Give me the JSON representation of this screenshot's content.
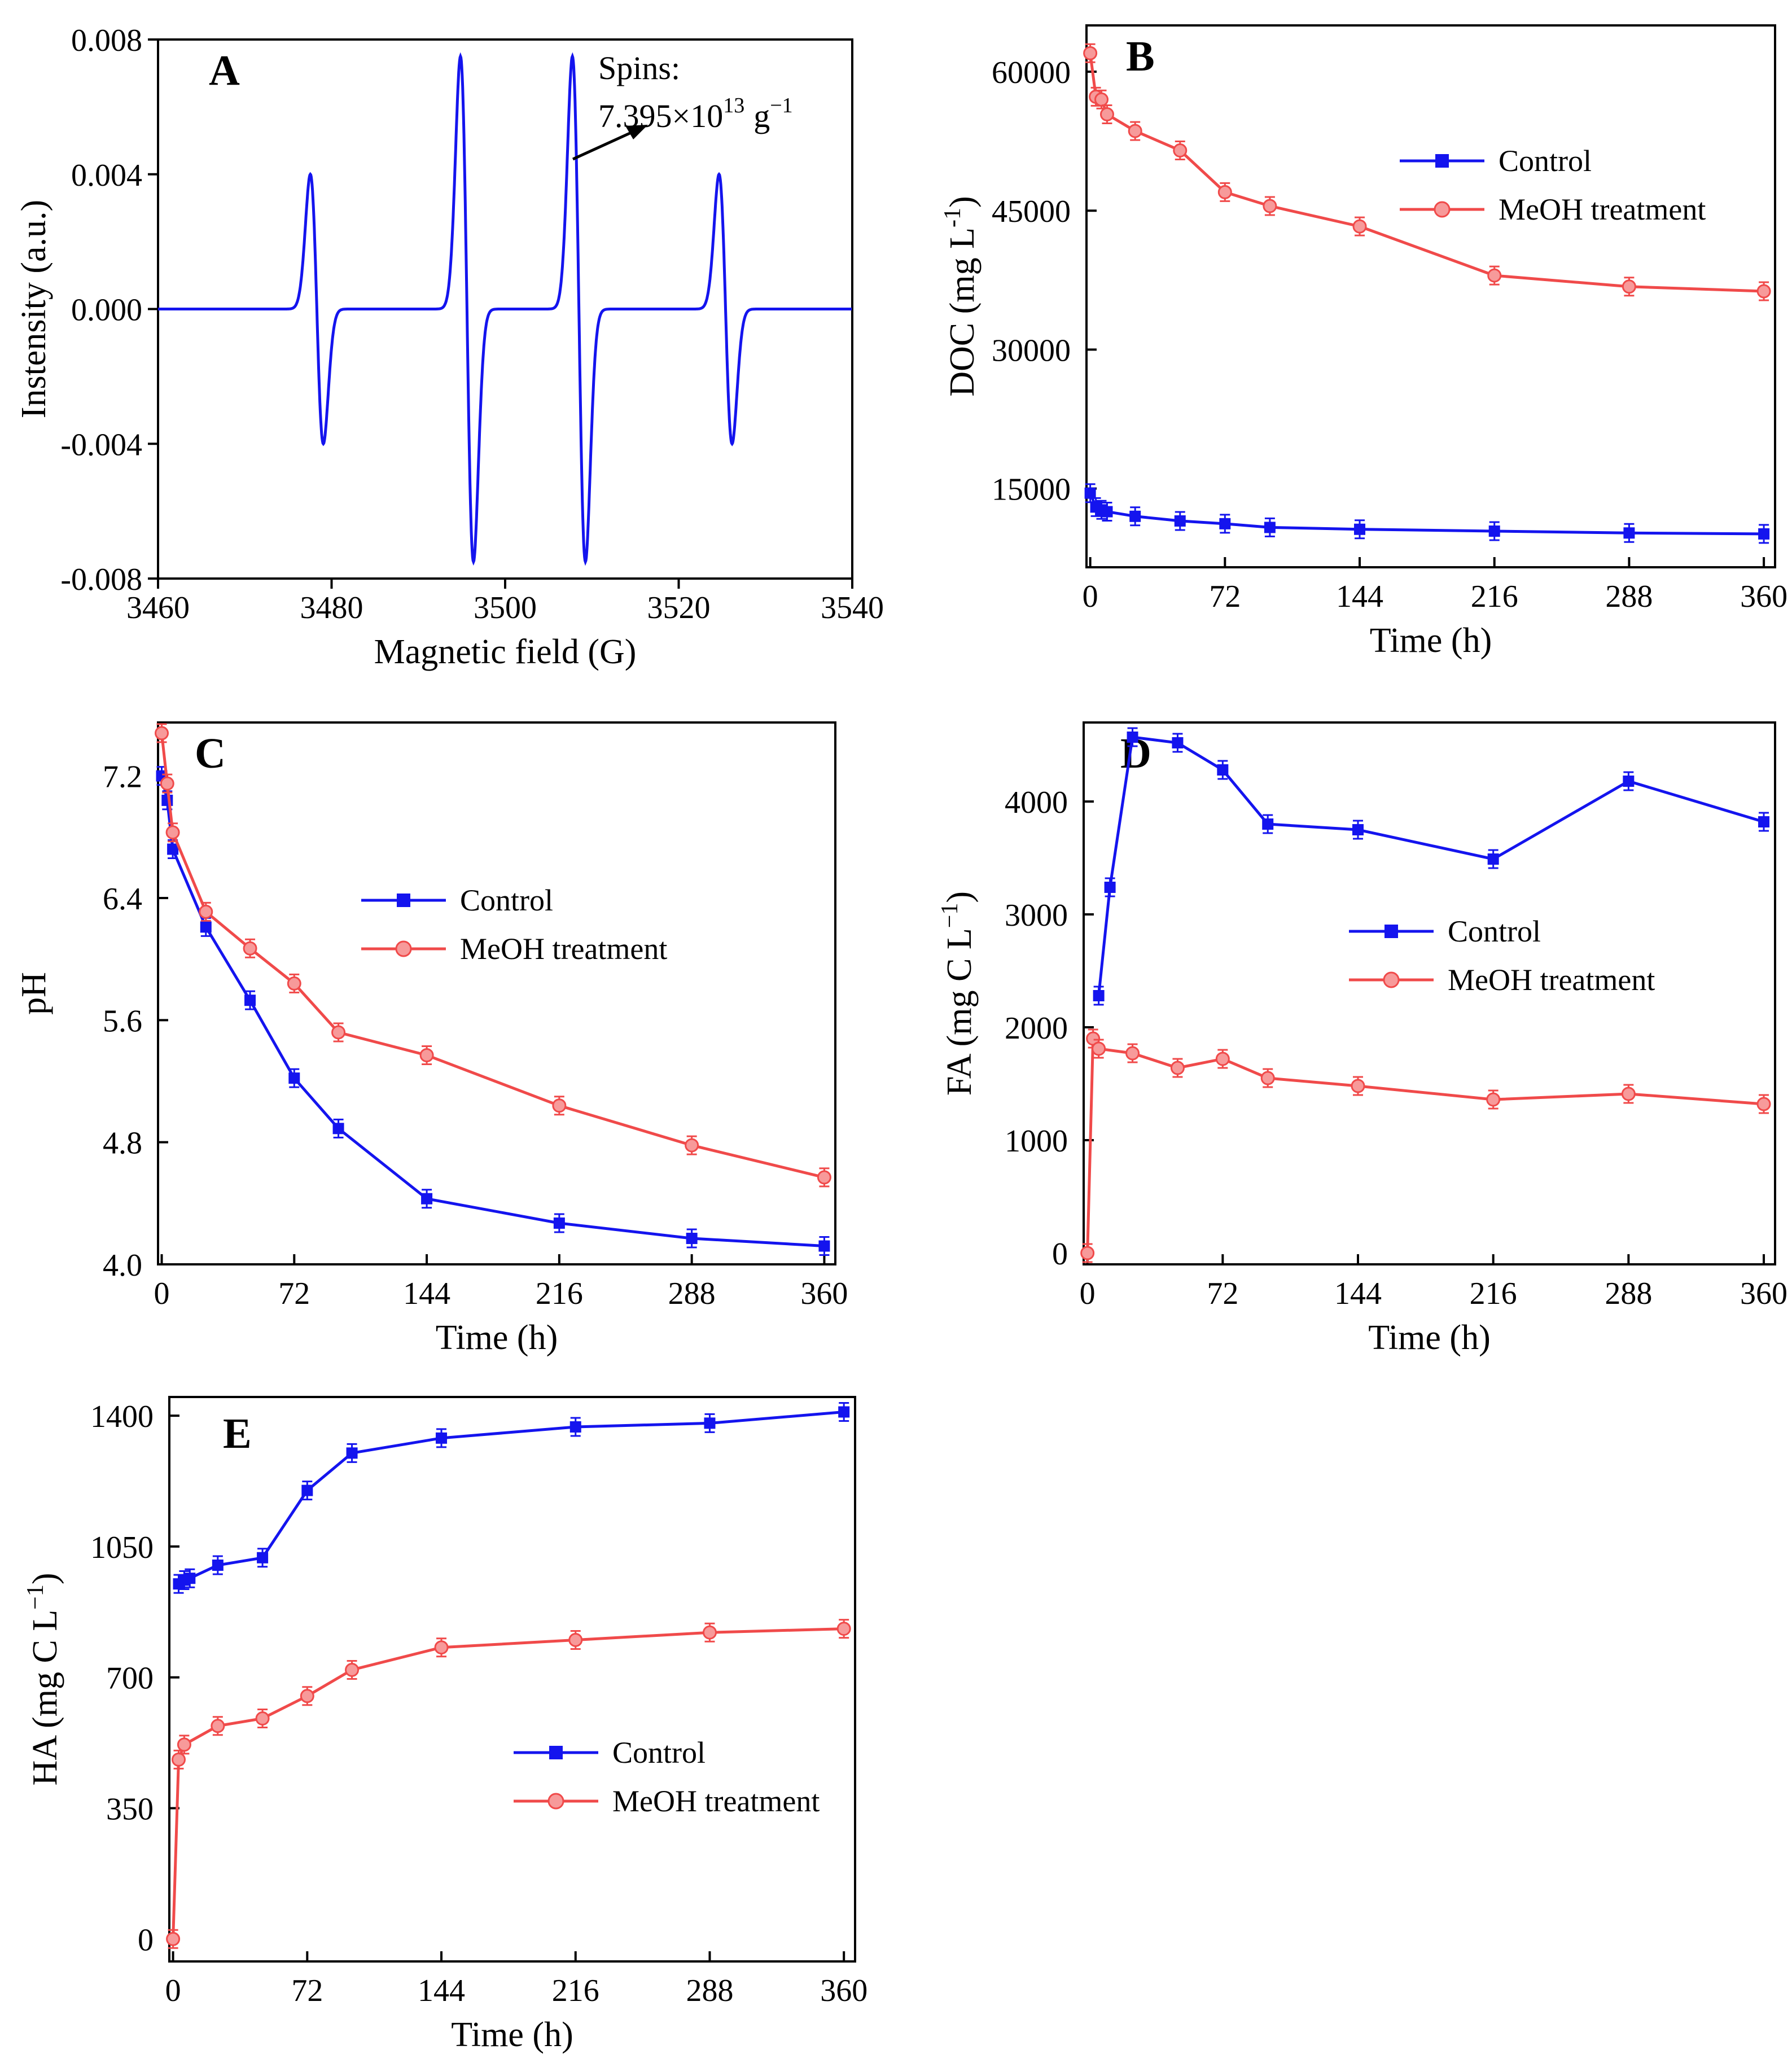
{
  "colors": {
    "control": "#1414ee",
    "meoh": "#f04a4a",
    "meoh_marker_fill": "#f79a9a",
    "axis": "#000000"
  },
  "chart_data": [
    {
      "id": "A",
      "type": "line",
      "title": "A",
      "xlabel": "Magnetic field (G)",
      "ylabel": "Instensity (a.u.)",
      "xlim": [
        3460,
        3540
      ],
      "ylim": [
        -0.008,
        0.008
      ],
      "xticks": [
        3460,
        3480,
        3500,
        3520,
        3540
      ],
      "yticks": [
        -0.008,
        -0.004,
        0.0,
        0.004,
        0.008
      ],
      "xtick_labels": [
        "3460",
        "3480",
        "3500",
        "3520",
        "3540"
      ],
      "ytick_labels": [
        "-0.008",
        "-0.004",
        "0.000",
        "0.004",
        "0.008"
      ],
      "peaks": [
        {
          "center": 3478.3,
          "amplitude": 0.004
        },
        {
          "center": 3495.6,
          "amplitude": 0.0075
        },
        {
          "center": 3508.5,
          "amplitude": 0.0075
        },
        {
          "center": 3525.4,
          "amplitude": 0.004
        }
      ],
      "annotation": {
        "line1": "Spins:",
        "line2_base": "7.395×10",
        "line2_exp": "13",
        "line2_unit": "g",
        "line2_unit_exp": "−1"
      }
    },
    {
      "id": "B",
      "type": "line",
      "title": "B",
      "xlabel": "Time (h)",
      "ylabel_base": "DOC (mg L",
      "ylabel_exp": "-1",
      "ylabel_close": ")",
      "xlim": [
        -2,
        366
      ],
      "ylim": [
        6500,
        65000
      ],
      "xticks": [
        0,
        72,
        144,
        216,
        288,
        360
      ],
      "yticks": [
        15000,
        30000,
        45000,
        60000
      ],
      "xtick_labels": [
        "0",
        "72",
        "144",
        "216",
        "288",
        "360"
      ],
      "ytick_labels": [
        "15000",
        "30000",
        "45000",
        "60000"
      ],
      "series": [
        {
          "name": "Control",
          "x": [
            0,
            3,
            6,
            9,
            24,
            48,
            72,
            96,
            144,
            216,
            288,
            360
          ],
          "y": [
            14500,
            13000,
            12700,
            12500,
            12000,
            11500,
            11200,
            10800,
            10600,
            10400,
            10200,
            10100
          ]
        },
        {
          "name": "MeOH treatment",
          "x": [
            0,
            3,
            6,
            9,
            24,
            48,
            72,
            96,
            144,
            216,
            288,
            360
          ],
          "y": [
            62000,
            57300,
            57000,
            55400,
            53600,
            51500,
            47000,
            45500,
            43300,
            38000,
            36800,
            36300
          ]
        }
      ]
    },
    {
      "id": "C",
      "type": "line",
      "title": "C",
      "xlabel": "Time (h)",
      "ylabel": "pH",
      "xlim": [
        -2,
        366
      ],
      "ylim": [
        4.0,
        7.55
      ],
      "xticks": [
        0,
        72,
        144,
        216,
        288,
        360
      ],
      "yticks": [
        4.0,
        4.8,
        5.6,
        6.4,
        7.2
      ],
      "xtick_labels": [
        "0",
        "72",
        "144",
        "216",
        "288",
        "360"
      ],
      "ytick_labels": [
        "4.0",
        "4.8",
        "5.6",
        "6.4",
        "7.2"
      ],
      "series": [
        {
          "name": "Control",
          "x": [
            0,
            3,
            6,
            24,
            48,
            72,
            96,
            144,
            216,
            288,
            360
          ],
          "y": [
            7.2,
            7.04,
            6.72,
            6.21,
            5.73,
            5.22,
            4.89,
            4.43,
            4.27,
            4.17,
            4.12
          ]
        },
        {
          "name": "MeOH treatment",
          "x": [
            0,
            3,
            6,
            24,
            48,
            72,
            96,
            144,
            216,
            288,
            360
          ],
          "y": [
            7.48,
            7.15,
            6.83,
            6.31,
            6.07,
            5.84,
            5.52,
            5.37,
            5.04,
            4.78,
            4.57
          ]
        }
      ]
    },
    {
      "id": "D",
      "type": "line",
      "title": "D",
      "xlabel": "Time (h)",
      "ylabel_base": "FA (mg C L",
      "ylabel_exp": "−1",
      "ylabel_close": ")",
      "xlim": [
        -2,
        366
      ],
      "ylim": [
        -100,
        4700
      ],
      "xticks": [
        0,
        72,
        144,
        216,
        288,
        360
      ],
      "yticks": [
        0,
        1000,
        2000,
        3000,
        4000
      ],
      "xtick_labels": [
        "0",
        "72",
        "144",
        "216",
        "288",
        "360"
      ],
      "ytick_labels": [
        "0",
        "1000",
        "2000",
        "3000",
        "4000"
      ],
      "series": [
        {
          "name": "Control",
          "x": [
            6,
            12,
            24,
            48,
            72,
            96,
            144,
            216,
            288,
            360
          ],
          "y": [
            2280,
            3240,
            4570,
            4520,
            4280,
            3800,
            3750,
            3490,
            4180,
            3820
          ]
        },
        {
          "name": "MeOH treatment",
          "x": [
            0,
            3,
            6,
            24,
            48,
            72,
            96,
            144,
            216,
            288,
            360
          ],
          "y": [
            0,
            1900,
            1810,
            1770,
            1640,
            1720,
            1550,
            1480,
            1360,
            1410,
            1320
          ]
        }
      ]
    },
    {
      "id": "E",
      "type": "line",
      "title": "E",
      "xlabel": "Time (h)",
      "ylabel_base": "HA (mg C L",
      "ylabel_exp": "−1",
      "ylabel_close": ")",
      "xlim": [
        -2,
        366
      ],
      "ylim": [
        -60,
        1450
      ],
      "xticks": [
        0,
        72,
        144,
        216,
        288,
        360
      ],
      "yticks": [
        0,
        350,
        700,
        1050,
        1400
      ],
      "xtick_labels": [
        "0",
        "72",
        "144",
        "216",
        "288",
        "360"
      ],
      "ytick_labels": [
        "0",
        "350",
        "700",
        "1050",
        "1400"
      ],
      "series": [
        {
          "name": "Control",
          "x": [
            3,
            6,
            9,
            24,
            48,
            72,
            96,
            144,
            216,
            288,
            360
          ],
          "y": [
            950,
            960,
            965,
            1000,
            1020,
            1200,
            1300,
            1340,
            1370,
            1380,
            1410
          ]
        },
        {
          "name": "MeOH treatment",
          "x": [
            0,
            3,
            6,
            24,
            48,
            72,
            96,
            144,
            216,
            288,
            360
          ],
          "y": [
            0,
            480,
            520,
            570,
            590,
            650,
            720,
            780,
            800,
            820,
            830
          ]
        }
      ]
    }
  ]
}
